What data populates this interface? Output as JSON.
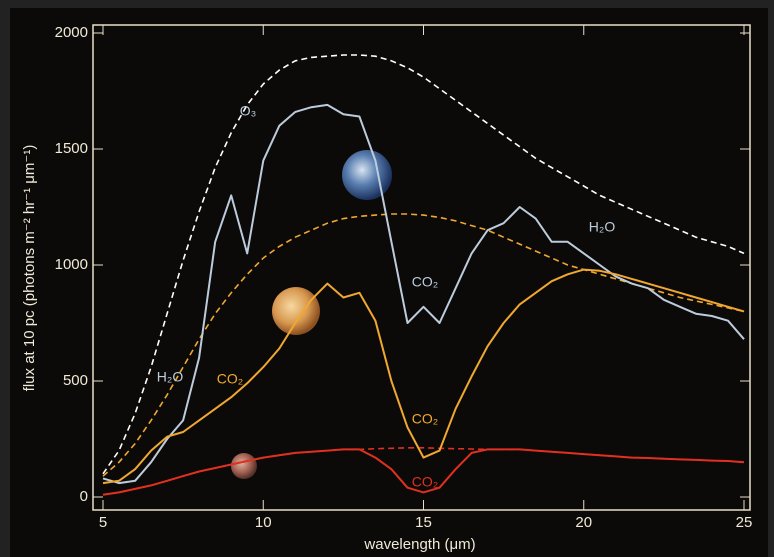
{
  "chart_data": {
    "type": "line",
    "x_label": "wavelength (μm)",
    "y_label": "flux at 10 pc (photons m⁻² hr⁻¹ μm⁻¹)",
    "x": [
      5,
      5.5,
      6,
      6.5,
      7,
      7.5,
      8,
      8.5,
      9,
      9.5,
      10,
      10.5,
      11,
      11.5,
      12,
      12.5,
      13,
      13.5,
      14,
      14.5,
      15,
      15.5,
      16,
      16.5,
      17,
      17.5,
      18,
      18.5,
      19,
      19.5,
      20,
      20.5,
      21,
      21.5,
      22,
      22.5,
      23,
      23.5,
      24,
      24.5,
      25
    ],
    "series": [
      {
        "color": "#ffffff",
        "dashed": true,
        "values": [
          100,
          200,
          360,
          560,
          790,
          1020,
          1230,
          1420,
          1570,
          1690,
          1780,
          1840,
          1880,
          1895,
          1900,
          1905,
          1905,
          1900,
          1880,
          1850,
          1810,
          1760,
          1710,
          1660,
          1610,
          1560,
          1510,
          1460,
          1420,
          1380,
          1340,
          1300,
          1270,
          1240,
          1210,
          1180,
          1150,
          1120,
          1100,
          1080,
          1050
        ]
      },
      {
        "color": "#f0a830",
        "dashed": true,
        "values": [
          90,
          150,
          230,
          330,
          440,
          560,
          680,
          790,
          880,
          960,
          1030,
          1080,
          1120,
          1150,
          1180,
          1200,
          1210,
          1215,
          1220,
          1220,
          1215,
          1205,
          1190,
          1170,
          1150,
          1120,
          1090,
          1060,
          1030,
          1000,
          980,
          960,
          940,
          920,
          900,
          880,
          860,
          845,
          830,
          815,
          800
        ]
      },
      {
        "color": "#e03020",
        "dashed": true,
        "values": [
          10,
          20,
          35,
          50,
          70,
          90,
          110,
          125,
          140,
          155,
          170,
          180,
          190,
          195,
          200,
          205,
          205,
          208,
          210,
          212,
          212,
          210,
          208,
          207,
          205,
          205,
          205,
          200,
          195,
          190,
          185,
          180,
          175,
          170,
          168,
          165,
          162,
          160,
          157,
          155,
          150
        ]
      },
      {
        "color": "#bcccdc",
        "dashed": false,
        "values": [
          80,
          60,
          70,
          150,
          250,
          330,
          600,
          1100,
          1300,
          1050,
          1450,
          1600,
          1660,
          1680,
          1690,
          1650,
          1640,
          1450,
          1100,
          750,
          820,
          750,
          900,
          1050,
          1150,
          1180,
          1250,
          1200,
          1100,
          1100,
          1050,
          1000,
          950,
          920,
          900,
          850,
          820,
          790,
          780,
          760,
          680
        ]
      },
      {
        "color": "#f0a830",
        "dashed": false,
        "values": [
          60,
          70,
          120,
          200,
          260,
          280,
          330,
          380,
          430,
          490,
          560,
          640,
          750,
          850,
          920,
          860,
          880,
          760,
          500,
          300,
          170,
          200,
          380,
          520,
          650,
          750,
          830,
          880,
          930,
          960,
          980,
          975,
          960,
          940,
          920,
          900,
          880,
          860,
          840,
          820,
          800
        ]
      },
      {
        "color": "#e03020",
        "dashed": false,
        "values": [
          10,
          20,
          35,
          50,
          70,
          90,
          110,
          125,
          140,
          155,
          170,
          180,
          190,
          195,
          200,
          205,
          205,
          170,
          120,
          40,
          20,
          40,
          120,
          190,
          205,
          205,
          205,
          200,
          195,
          190,
          185,
          180,
          175,
          170,
          168,
          165,
          162,
          160,
          157,
          155,
          150
        ]
      }
    ],
    "annotations": [
      {
        "text": "O₃",
        "color": "#bcccdc"
      },
      {
        "text": "H₂O",
        "color": "#bcccdc"
      },
      {
        "text": "CO₂",
        "color": "#f0a830"
      },
      {
        "text": "CO₂",
        "color": "#bcccdc"
      },
      {
        "text": "H₂O",
        "color": "#bcccdc"
      },
      {
        "text": "CO₂",
        "color": "#f0a830"
      },
      {
        "text": "CO₂",
        "color": "#e03020"
      }
    ],
    "xlim": [
      5,
      25
    ],
    "ylim": [
      0,
      2000
    ],
    "xticks": [
      5,
      10,
      15,
      20,
      25
    ],
    "yticks": [
      0,
      500,
      1000,
      1500,
      2000
    ]
  }
}
